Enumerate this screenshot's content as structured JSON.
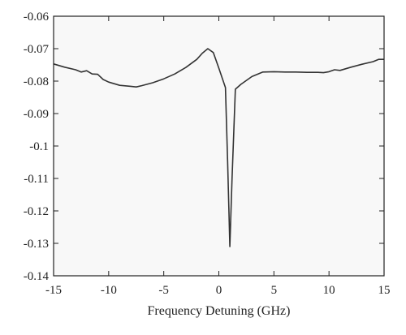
{
  "chart_data": {
    "type": "line",
    "title": "",
    "xlabel": "Frequency Detuning (GHz)",
    "ylabel": "",
    "xlim": [
      -15,
      15
    ],
    "ylim": [
      -0.14,
      -0.06
    ],
    "xticks": [
      -15,
      -10,
      -5,
      0,
      5,
      10,
      15
    ],
    "yticks": [
      -0.06,
      -0.07,
      -0.08,
      -0.09,
      -0.1,
      -0.11,
      -0.12,
      -0.13,
      -0.14
    ],
    "xtick_labels": [
      "-15",
      "-10",
      "-5",
      "0",
      "5",
      "10",
      "15"
    ],
    "ytick_labels": [
      "-0.06",
      "-0.07",
      "-0.08",
      "-0.09",
      "-0.1",
      "-0.11",
      "-0.12",
      "-0.13",
      "-0.14"
    ],
    "grid": false,
    "colors": {
      "line": "#333333",
      "plot_bg": "#f8f8f8",
      "axes": "#222222"
    },
    "series": [
      {
        "x": [
          -15,
          -14,
          -13,
          -12.5,
          -12,
          -11.5,
          -11,
          -10.5,
          -10,
          -9,
          -8,
          -7.5,
          -7,
          -6,
          -5,
          -4,
          -3,
          -2,
          -1.5,
          -1,
          -0.5,
          0,
          0.3,
          0.6,
          0.8,
          1.0,
          1.2,
          1.5,
          2,
          3,
          4,
          5,
          6,
          7,
          8,
          9,
          9.5,
          10,
          10.5,
          11,
          12,
          13,
          14,
          14.5,
          15
        ],
        "y": [
          -0.0747,
          -0.0757,
          -0.0765,
          -0.0772,
          -0.0768,
          -0.0778,
          -0.0779,
          -0.0795,
          -0.0803,
          -0.0813,
          -0.0816,
          -0.0818,
          -0.0814,
          -0.0805,
          -0.0793,
          -0.0778,
          -0.0758,
          -0.0733,
          -0.0714,
          -0.07,
          -0.0712,
          -0.076,
          -0.079,
          -0.082,
          -0.105,
          -0.131,
          -0.11,
          -0.0825,
          -0.081,
          -0.0786,
          -0.0772,
          -0.0771,
          -0.0772,
          -0.0772,
          -0.0773,
          -0.0773,
          -0.0774,
          -0.0771,
          -0.0765,
          -0.0767,
          -0.0757,
          -0.0748,
          -0.074,
          -0.0733,
          -0.0733
        ]
      }
    ]
  }
}
